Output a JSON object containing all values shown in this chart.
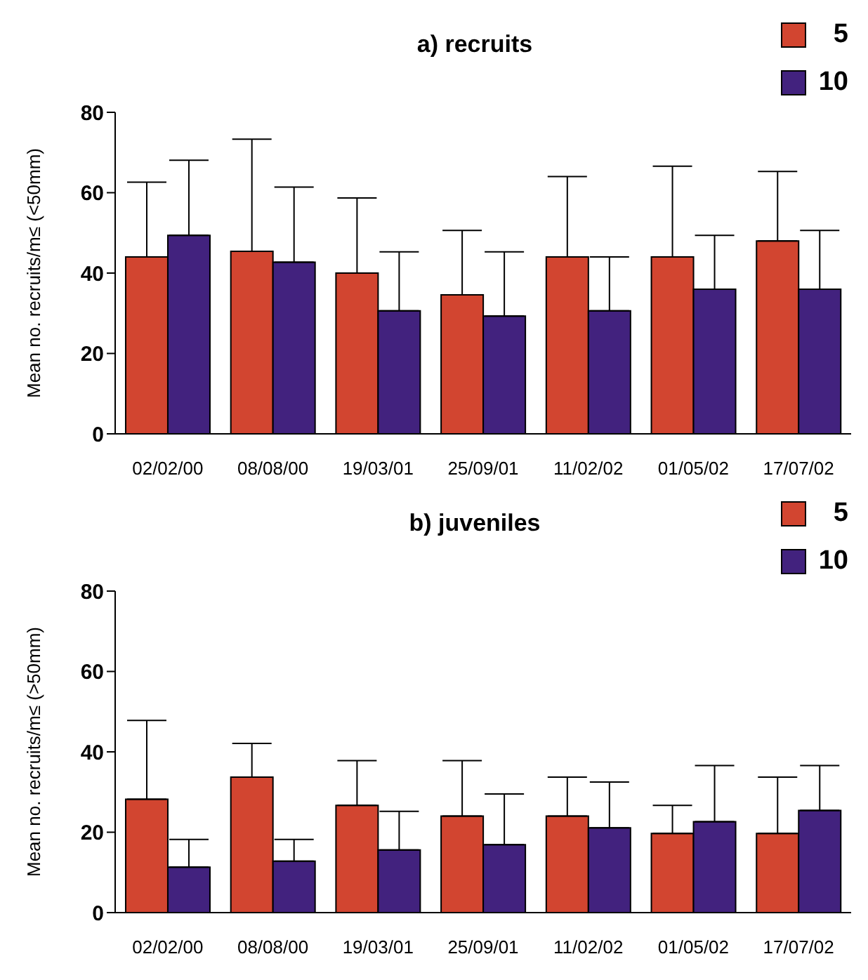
{
  "chart_data": [
    {
      "type": "bar",
      "title": "a) recruits",
      "ylabel": "Mean no. recruits/m≤ (<50mm)",
      "categories": [
        "02/02/00",
        "08/08/00",
        "19/03/01",
        "25/09/01",
        "11/02/02",
        "01/05/02",
        "17/07/02"
      ],
      "series": [
        {
          "name": "5",
          "color": "#d24530",
          "values": [
            44,
            45.4,
            40,
            34.6,
            44,
            44,
            48
          ],
          "errors": [
            [
              44,
              62.6
            ],
            [
              45.4,
              73.3
            ],
            [
              40,
              58.7
            ],
            [
              34.6,
              50.6
            ],
            [
              44,
              64
            ],
            [
              44,
              66.6
            ],
            [
              48,
              65.3
            ]
          ]
        },
        {
          "name": "10",
          "color": "#42227e",
          "values": [
            49.4,
            42.7,
            30.6,
            29.3,
            30.6,
            36,
            36
          ],
          "errors": [
            [
              49.4,
              68.1
            ],
            [
              42.7,
              61.4
            ],
            [
              30.6,
              45.3
            ],
            [
              29.3,
              45.3
            ],
            [
              30.6,
              44
            ],
            [
              36,
              49.4
            ],
            [
              36,
              50.6
            ]
          ]
        }
      ],
      "ylim": [
        0,
        80
      ],
      "yticks": [
        0,
        20,
        40,
        60,
        80
      ],
      "grid": false,
      "legend": "top right"
    },
    {
      "type": "bar",
      "title": "b) juveniles",
      "ylabel": "Mean no. recruits/m≤ (>50mm)",
      "categories": [
        "02/02/00",
        "08/08/00",
        "19/03/01",
        "25/09/01",
        "11/02/02",
        "01/05/02",
        "17/07/02"
      ],
      "series": [
        {
          "name": "5",
          "color": "#d24530",
          "values": [
            28.2,
            33.7,
            26.7,
            24,
            24,
            19.7,
            19.7
          ],
          "errors": [
            [
              28.2,
              47.8
            ],
            [
              33.7,
              42.1
            ],
            [
              26.7,
              37.8
            ],
            [
              24,
              37.8
            ],
            [
              24,
              33.7
            ],
            [
              19.7,
              26.7
            ],
            [
              19.7,
              33.7
            ]
          ]
        },
        {
          "name": "10",
          "color": "#42227e",
          "values": [
            11.3,
            12.8,
            15.6,
            16.9,
            21.1,
            22.6,
            25.4
          ],
          "errors": [
            [
              11.3,
              18.2
            ],
            [
              12.8,
              18.2
            ],
            [
              15.6,
              25.2
            ],
            [
              16.9,
              29.5
            ],
            [
              21.1,
              32.5
            ],
            [
              22.6,
              36.6
            ],
            [
              25.4,
              36.6
            ]
          ]
        }
      ],
      "ylim": [
        0,
        80
      ],
      "yticks": [
        0,
        20,
        40,
        60,
        80
      ],
      "grid": false,
      "legend": "top right"
    }
  ]
}
